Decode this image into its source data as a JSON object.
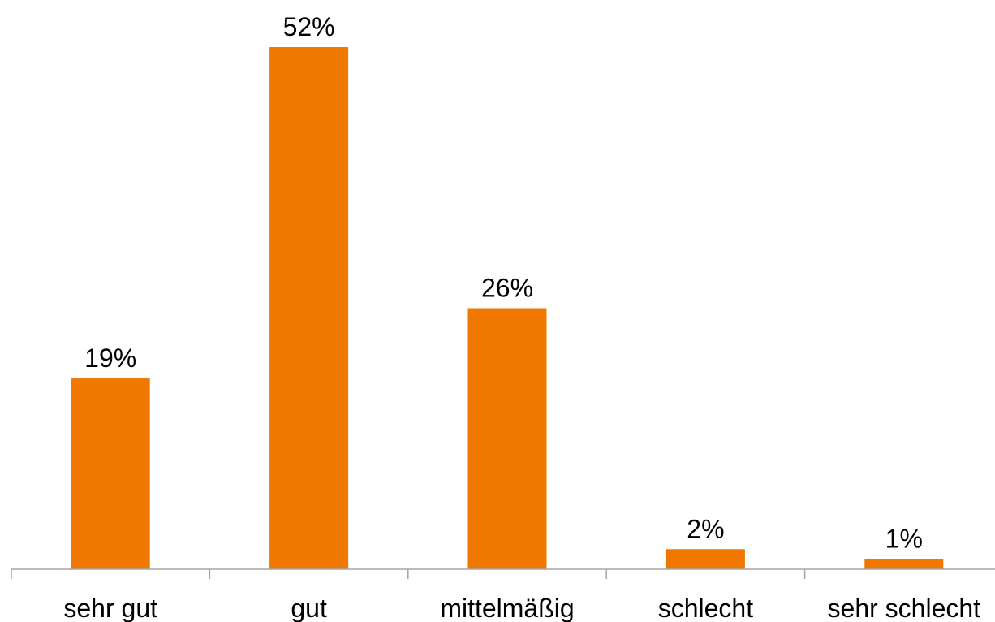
{
  "chart_data": {
    "type": "bar",
    "categories": [
      "sehr gut",
      "gut",
      "mittelmäßig",
      "schlecht",
      "sehr schlecht"
    ],
    "values": [
      19,
      52,
      26,
      2,
      1
    ],
    "data_labels": [
      "19%",
      "52%",
      "26%",
      "2%",
      "1%"
    ],
    "value_unit": "%",
    "ylim": [
      0,
      52
    ],
    "grid": false,
    "legend": "none",
    "bar_color": "#F07800",
    "axis_color": "#A6A6A6"
  }
}
